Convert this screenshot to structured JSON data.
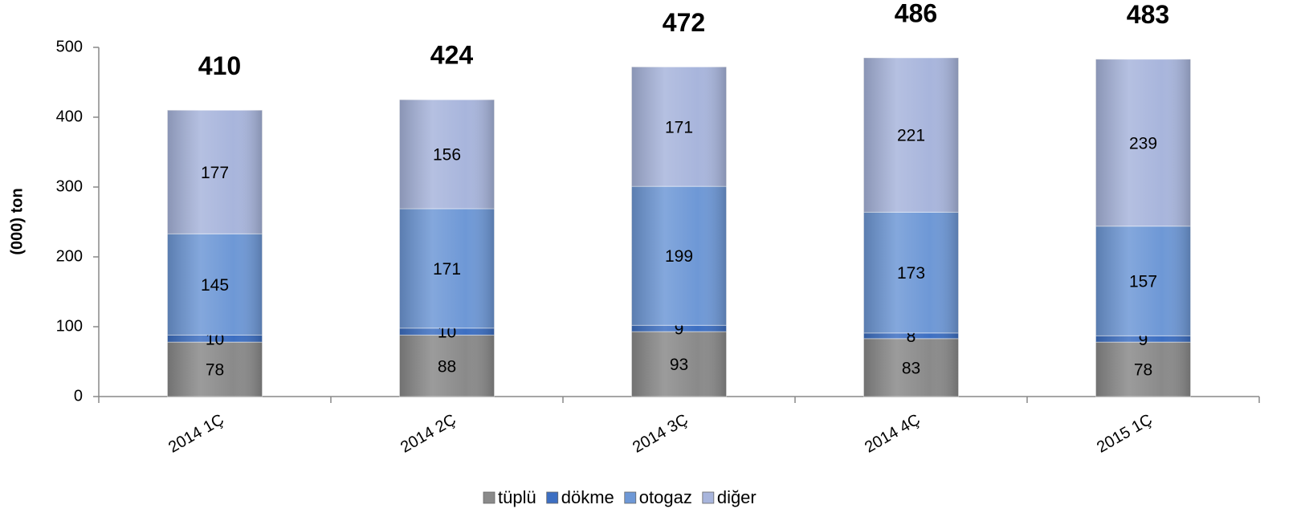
{
  "chart_data": {
    "type": "stacked_bar",
    "y_label": "(000) ton",
    "categories": [
      "2014 1Ç",
      "2014 2Ç",
      "2014 3Ç",
      "2014 4Ç",
      "2015 1Ç"
    ],
    "series": [
      {
        "name": "tüplü",
        "color": "#8a8a8a",
        "values": [
          78,
          88,
          93,
          83,
          78
        ]
      },
      {
        "name": "dökme",
        "color": "#3d6fc2",
        "values": [
          10,
          10,
          9,
          8,
          9
        ]
      },
      {
        "name": "otogaz",
        "color": "#6e98d6",
        "values": [
          145,
          171,
          199,
          173,
          157
        ]
      },
      {
        "name": "diğer",
        "color": "#a8b5dc",
        "values": [
          177,
          156,
          171,
          221,
          239
        ]
      }
    ],
    "totals": [
      410,
      424,
      472,
      486,
      483
    ],
    "ylim": [
      0,
      500
    ],
    "yticks": [
      0,
      100,
      200,
      300,
      400,
      500
    ],
    "legend": "bottom"
  }
}
